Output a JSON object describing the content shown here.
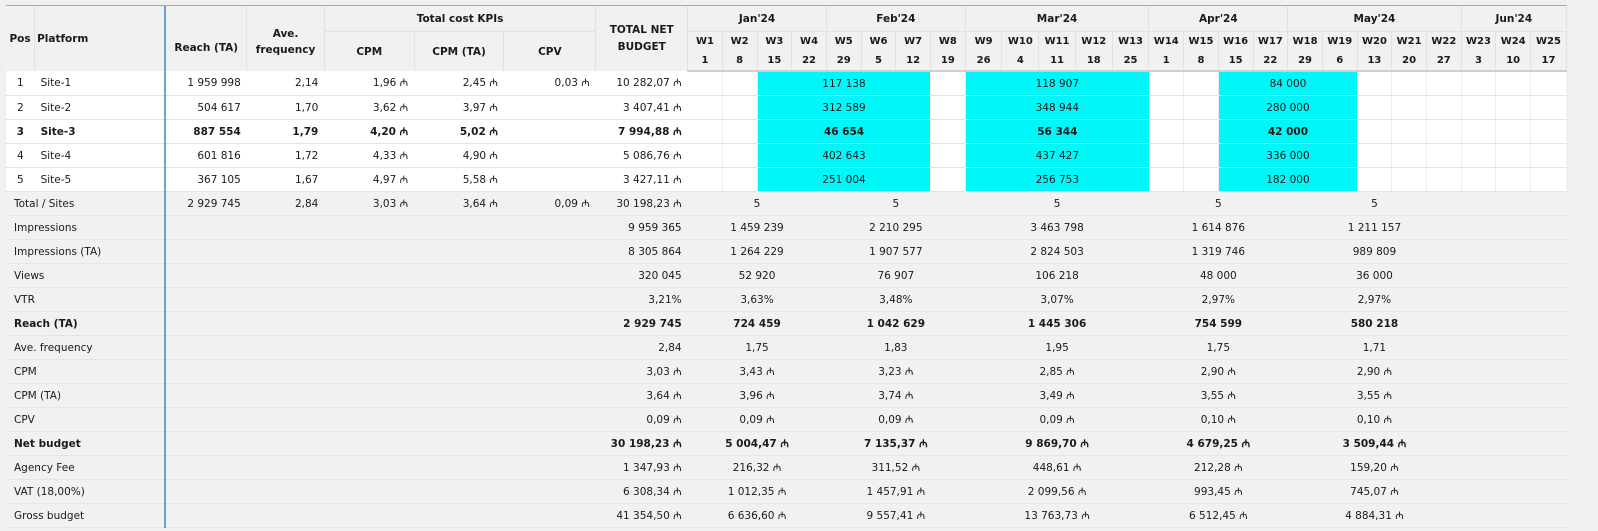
{
  "header": {
    "pos": "Pos",
    "platform": "Platform",
    "reach_ta": "Reach (TA)",
    "ave_frequency": "Ave. frequency",
    "total_cost_kpis": "Total cost KPIs",
    "cpm": "CPM",
    "cpm_ta": "CPM (TA)",
    "cpv": "CPV",
    "total_net_budget": "TOTAL NET BUDGET",
    "months": [
      "Jan'24",
      "Feb'24",
      "Mar'24",
      "Apr'24",
      "May'24",
      "Jun'24"
    ],
    "weeks": [
      "W1",
      "W2",
      "W3",
      "W4",
      "W5",
      "W6",
      "W7",
      "W8",
      "W9",
      "W10",
      "W11",
      "W12",
      "W13",
      "W14",
      "W15",
      "W16",
      "W17",
      "W18",
      "W19",
      "W20",
      "W21",
      "W22",
      "W23",
      "W24",
      "W25"
    ],
    "days": [
      "1",
      "8",
      "15",
      "22",
      "29",
      "5",
      "12",
      "19",
      "26",
      "4",
      "11",
      "18",
      "25",
      "1",
      "8",
      "15",
      "22",
      "29",
      "6",
      "13",
      "20",
      "27",
      "3",
      "10",
      "17"
    ]
  },
  "sites": [
    {
      "pos": "1",
      "platform": "Site-1",
      "reach": "1 959 998",
      "freq": "2,14",
      "cpm": "1,96 ₼",
      "cpm_ta": "2,45 ₼",
      "cpv": "0,03 ₼",
      "budget": "10 282,07 ₼",
      "flight_jan_feb": "117 138",
      "flight_mar": "118 907",
      "flight_apr_may": "84 000",
      "bold": false
    },
    {
      "pos": "2",
      "platform": "Site-2",
      "reach": "504 617",
      "freq": "1,70",
      "cpm": "3,62 ₼",
      "cpm_ta": "3,97 ₼",
      "cpv": "",
      "budget": "3 407,41 ₼",
      "flight_jan_feb": "312 589",
      "flight_mar": "348 944",
      "flight_apr_may": "280 000",
      "bold": false
    },
    {
      "pos": "3",
      "platform": "Site-3",
      "reach": "887 554",
      "freq": "1,79",
      "cpm": "4,20 ₼",
      "cpm_ta": "5,02 ₼",
      "cpv": "",
      "budget": "7 994,88 ₼",
      "flight_jan_feb": "46 654",
      "flight_mar": "56 344",
      "flight_apr_may": "42 000",
      "bold": true
    },
    {
      "pos": "4",
      "platform": "Site-4",
      "reach": "601 816",
      "freq": "1,72",
      "cpm": "4,33 ₼",
      "cpm_ta": "4,90 ₼",
      "cpv": "",
      "budget": "5 086,76 ₼",
      "flight_jan_feb": "402 643",
      "flight_mar": "437 427",
      "flight_apr_may": "336 000",
      "bold": false
    },
    {
      "pos": "5",
      "platform": "Site-5",
      "reach": "367 105",
      "freq": "1,67",
      "cpm": "4,97 ₼",
      "cpm_ta": "5,58 ₼",
      "cpv": "",
      "budget": "3 427,11 ₼",
      "flight_jan_feb": "251 004",
      "flight_mar": "256 753",
      "flight_apr_may": "182 000",
      "bold": false
    }
  ],
  "total_sites": {
    "label": "Total / Sites",
    "reach": "2 929 745",
    "freq": "2,84",
    "cpm": "3,03 ₼",
    "cpm_ta": "3,64 ₼",
    "cpv": "0,09 ₼",
    "budget": "30 198,23 ₼",
    "months": [
      "5",
      "5",
      "5",
      "5",
      "5",
      ""
    ]
  },
  "summary": [
    {
      "label": "Impressions",
      "total": "9 959 365",
      "months": [
        "1 459 239",
        "2 210 295",
        "3 463 798",
        "1 614 876",
        "1 211 157",
        ""
      ],
      "bold": false
    },
    {
      "label": "Impressions (TA)",
      "total": "8 305 864",
      "months": [
        "1 264 229",
        "1 907 577",
        "2 824 503",
        "1 319 746",
        "989 809",
        ""
      ],
      "bold": false
    },
    {
      "label": "Views",
      "total": "320 045",
      "months": [
        "52 920",
        "76 907",
        "106 218",
        "48 000",
        "36 000",
        ""
      ],
      "bold": false
    },
    {
      "label": "VTR",
      "total": "3,21%",
      "months": [
        "3,63%",
        "3,48%",
        "3,07%",
        "2,97%",
        "2,97%",
        ""
      ],
      "bold": false
    },
    {
      "label": "Reach (TA)",
      "total": "2 929 745",
      "months": [
        "724 459",
        "1 042 629",
        "1 445 306",
        "754 599",
        "580 218",
        ""
      ],
      "bold": true
    },
    {
      "label": "Ave. frequency",
      "total": "2,84",
      "months": [
        "1,75",
        "1,83",
        "1,95",
        "1,75",
        "1,71",
        ""
      ],
      "bold": false
    },
    {
      "label": "CPM",
      "total": "3,03 ₼",
      "months": [
        "3,43 ₼",
        "3,23 ₼",
        "2,85 ₼",
        "2,90 ₼",
        "2,90 ₼",
        ""
      ],
      "bold": false
    },
    {
      "label": "CPM (TA)",
      "total": "3,64 ₼",
      "months": [
        "3,96 ₼",
        "3,74 ₼",
        "3,49 ₼",
        "3,55 ₼",
        "3,55 ₼",
        ""
      ],
      "bold": false
    },
    {
      "label": "CPV",
      "total": "0,09 ₼",
      "months": [
        "0,09 ₼",
        "0,09 ₼",
        "0,09 ₼",
        "0,10 ₼",
        "0,10 ₼",
        ""
      ],
      "bold": false
    },
    {
      "label": "Net budget",
      "total": "30 198,23 ₼",
      "months": [
        "5 004,47 ₼",
        "7 135,37 ₼",
        "9 869,70 ₼",
        "4 679,25 ₼",
        "3 509,44 ₼",
        ""
      ],
      "bold": true
    },
    {
      "label": "Agency Fee",
      "total": "1 347,93 ₼",
      "months": [
        "216,32 ₼",
        "311,52 ₼",
        "448,61 ₼",
        "212,28 ₼",
        "159,20 ₼",
        ""
      ],
      "bold": false
    },
    {
      "label": "VAT (18,00%)",
      "total": "6 308,34 ₼",
      "months": [
        "1 012,35 ₼",
        "1 457,91 ₼",
        "2 099,56 ₼",
        "993,45 ₼",
        "745,07 ₼",
        ""
      ],
      "bold": false
    },
    {
      "label": "Gross budget",
      "total": "41 354,50 ₼",
      "months": [
        "6 636,60 ₼",
        "9 557,41 ₼",
        "13 763,73 ₼",
        "6 512,45 ₼",
        "4 884,31 ₼",
        ""
      ],
      "bold": false
    }
  ]
}
